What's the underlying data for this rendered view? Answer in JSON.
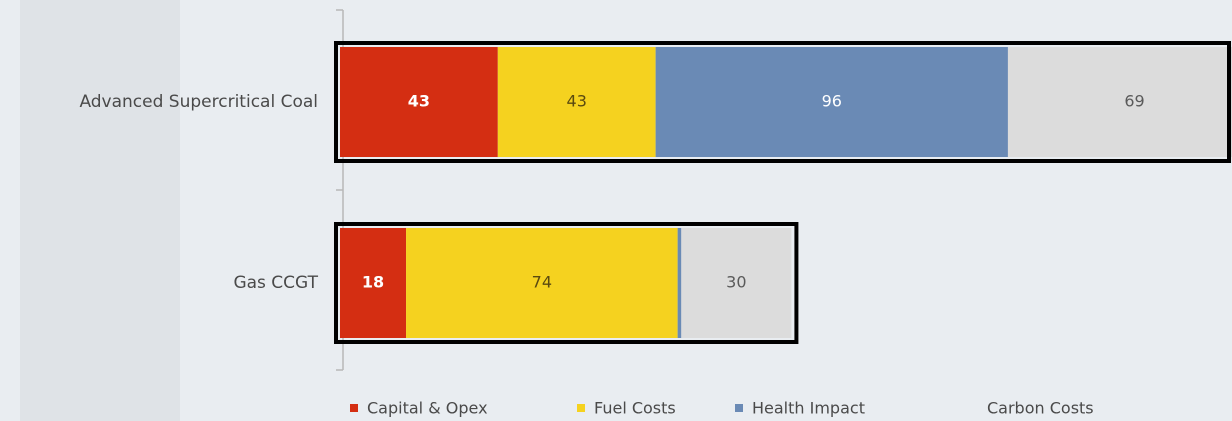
{
  "chart_data": {
    "type": "stacked-bar-horizontal",
    "categories": [
      "Advanced Supercritical Coal",
      "Gas CCGT"
    ],
    "series": [
      {
        "name": "Capital & Opex",
        "color": "#d42e12",
        "values": [
          43,
          18
        ]
      },
      {
        "name": "Fuel Costs",
        "color": "#f5d21f",
        "values": [
          43,
          74
        ]
      },
      {
        "name": "Health Impact",
        "color": "#6a8ab5",
        "values": [
          96,
          1
        ]
      },
      {
        "name": "Carbon Costs",
        "color": "#dcdcdc",
        "values": [
          69,
          30
        ]
      }
    ],
    "label_colors": [
      "#ffffff",
      "#5a4a10",
      "#ffffff",
      "#5a5a5a"
    ]
  }
}
